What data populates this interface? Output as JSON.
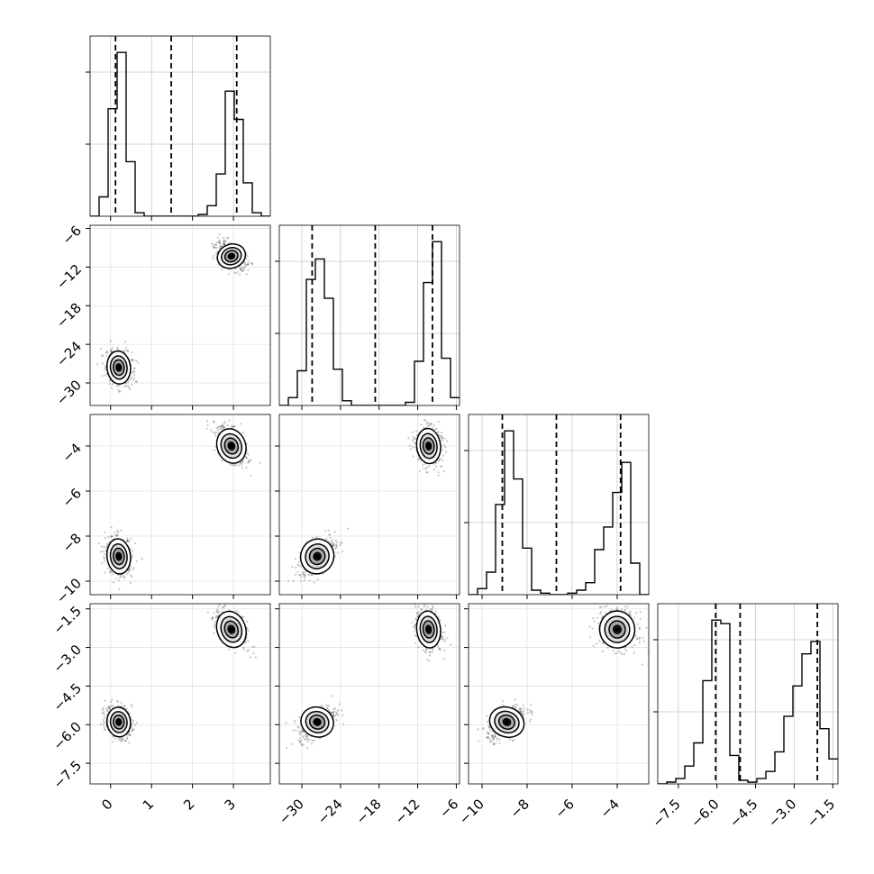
{
  "chart_data": {
    "type": "corner",
    "grid": true,
    "legend": "none",
    "parameters": [
      {
        "range": [
          -0.5,
          3.9
        ],
        "ticks": [
          0,
          1,
          2,
          3
        ],
        "tick_labels": [
          "0",
          "1",
          "2",
          "3"
        ],
        "quantiles": [
          0.12,
          1.48,
          3.08
        ],
        "modes": [
          {
            "mean": 0.2,
            "sd": 0.14
          },
          {
            "mean": 2.95,
            "sd": 0.17
          }
        ]
      },
      {
        "range": [
          -33.5,
          -5.5
        ],
        "ticks": [
          -30,
          -24,
          -18,
          -12,
          -6
        ],
        "tick_labels": [
          "−30",
          "−24",
          "−18",
          "−12",
          "−6"
        ],
        "quantiles": [
          -28.4,
          -18.6,
          -9.7
        ],
        "modes": [
          {
            "mean": -27.6,
            "sd": 1.25
          },
          {
            "mean": -10.3,
            "sd": 0.9
          }
        ]
      },
      {
        "range": [
          -10.6,
          -2.6
        ],
        "ticks": [
          -10,
          -8,
          -6,
          -4
        ],
        "tick_labels": [
          "−10",
          "−8",
          "−6",
          "−4"
        ],
        "quantiles": [
          -9.1,
          -6.7,
          -3.85
        ],
        "modes": [
          {
            "mean": -8.9,
            "sd": 0.38
          },
          {
            "mean": -4.0,
            "sd": 0.38
          }
        ]
      },
      {
        "range": [
          -8.3,
          -1.3
        ],
        "ticks": [
          -7.5,
          -6.0,
          -4.5,
          -3.0,
          -1.5
        ],
        "tick_labels": [
          "−7.5",
          "−6.0",
          "−4.5",
          "−3.0",
          "−1.5"
        ],
        "quantiles": [
          -6.05,
          -5.1,
          -2.1
        ],
        "modes": [
          {
            "mean": -5.9,
            "sd": 0.28
          },
          {
            "mean": -2.3,
            "sd": 0.35
          }
        ]
      }
    ],
    "histograms": [
      {
        "bins": [
          -0.5,
          -0.28,
          -0.06,
          0.16,
          0.38,
          0.6,
          0.82,
          1.04,
          1.26,
          1.48,
          1.7,
          1.92,
          2.14,
          2.36,
          2.58,
          2.8,
          3.02,
          3.24,
          3.46,
          3.68,
          3.9
        ],
        "counts": [
          0,
          11,
          61,
          93,
          31,
          2,
          0,
          0,
          0,
          0,
          0,
          0,
          1,
          6,
          24,
          71,
          55,
          19,
          2,
          0
        ]
      },
      {
        "bins": [
          -33.5,
          -32.1,
          -30.7,
          -29.3,
          -27.9,
          -26.5,
          -25.1,
          -23.7,
          -22.3,
          -20.9,
          -19.5,
          -18.1,
          -16.7,
          -15.3,
          -13.9,
          -12.5,
          -11.1,
          -9.7,
          -8.3,
          -6.9,
          -5.5
        ],
        "counts": [
          0,
          5,
          22,
          80,
          93,
          68,
          23,
          3,
          0,
          0,
          0,
          0,
          0,
          0,
          2,
          28,
          78,
          104,
          30,
          5
        ]
      },
      {
        "bins": [
          -10.6,
          -10.2,
          -9.8,
          -9.4,
          -9.0,
          -8.6,
          -8.2,
          -7.8,
          -7.4,
          -7.0,
          -6.6,
          -6.2,
          -5.8,
          -5.4,
          -5.0,
          -4.6,
          -4.2,
          -3.8,
          -3.4,
          -3.0,
          -2.6
        ],
        "counts": [
          0,
          4,
          15,
          60,
          109,
          77,
          31,
          3,
          1,
          0,
          0,
          1,
          3,
          8,
          30,
          45,
          68,
          88,
          21,
          0
        ]
      },
      {
        "bins": [
          -8.3,
          -7.95,
          -7.6,
          -7.25,
          -6.9,
          -6.55,
          -6.2,
          -5.85,
          -5.5,
          -5.15,
          -4.8,
          -4.45,
          -4.1,
          -3.75,
          -3.4,
          -3.05,
          -2.7,
          -2.35,
          -2.0,
          -1.65,
          -1.3
        ],
        "counts": [
          0,
          1,
          3,
          10,
          23,
          58,
          92,
          90,
          16,
          2,
          1,
          3,
          7,
          18,
          38,
          55,
          73,
          80,
          31,
          14
        ]
      }
    ],
    "clusters": [
      [
        0.2,
        -27.6,
        -8.9,
        -5.9
      ],
      [
        2.95,
        -10.3,
        -4.0,
        -2.3
      ]
    ]
  }
}
